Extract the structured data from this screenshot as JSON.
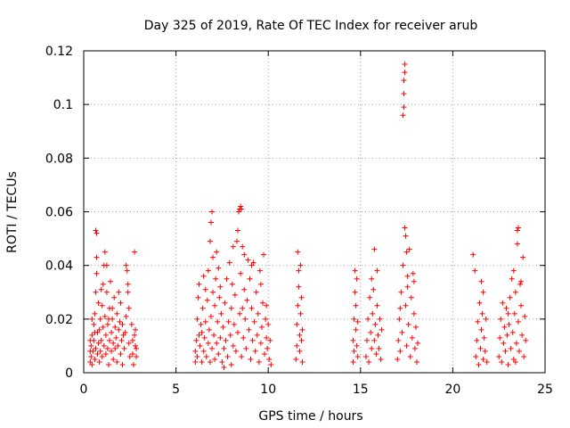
{
  "chart_data": {
    "type": "scatter",
    "title": "Day 325 of 2019, Rate Of TEC Index for receiver arub",
    "xlabel": "GPS time / hours",
    "ylabel": "ROTI / TECUs",
    "xlim": [
      0,
      25
    ],
    "ylim": [
      0,
      0.12
    ],
    "xticks": [
      0,
      5,
      10,
      15,
      20,
      25
    ],
    "xtick_labels": [
      "0",
      "5",
      "10",
      "15",
      "20",
      "25"
    ],
    "yticks": [
      0,
      0.02,
      0.04,
      0.06,
      0.08,
      0.1,
      0.12
    ],
    "ytick_labels": [
      "0",
      "0.02",
      "0.04",
      "0.06",
      "0.08",
      "0.1",
      "0.12"
    ],
    "grid": true,
    "marker": "plus",
    "color": "#ff0000",
    "points": [
      [
        0.35,
        0.004
      ],
      [
        0.35,
        0.008
      ],
      [
        0.35,
        0.012
      ],
      [
        0.4,
        0.006
      ],
      [
        0.4,
        0.01
      ],
      [
        0.45,
        0.014
      ],
      [
        0.45,
        0.003
      ],
      [
        0.5,
        0.008
      ],
      [
        0.55,
        0.012
      ],
      [
        0.55,
        0.018
      ],
      [
        0.6,
        0.022
      ],
      [
        0.6,
        0.005
      ],
      [
        0.65,
        0.009
      ],
      [
        0.65,
        0.03
      ],
      [
        0.65,
        0.053
      ],
      [
        0.7,
        0.052
      ],
      [
        0.7,
        0.043
      ],
      [
        0.7,
        0.037
      ],
      [
        0.75,
        0.015
      ],
      [
        0.75,
        0.007
      ],
      [
        0.8,
        0.026
      ],
      [
        0.8,
        0.011
      ],
      [
        0.85,
        0.004
      ],
      [
        0.85,
        0.016
      ],
      [
        0.9,
        0.02
      ],
      [
        0.9,
        0.008
      ],
      [
        0.95,
        0.012
      ],
      [
        1.0,
        0.025
      ],
      [
        1.0,
        0.006
      ],
      [
        1.05,
        0.033
      ],
      [
        1.05,
        0.017
      ],
      [
        1.1,
        0.01
      ],
      [
        1.1,
        0.04
      ],
      [
        1.15,
        0.045
      ],
      [
        1.15,
        0.021
      ],
      [
        1.2,
        0.007
      ],
      [
        1.2,
        0.014
      ],
      [
        1.25,
        0.03
      ],
      [
        1.25,
        0.04
      ],
      [
        1.3,
        0.009
      ],
      [
        1.3,
        0.018
      ],
      [
        1.35,
        0.003
      ],
      [
        1.4,
        0.012
      ],
      [
        1.4,
        0.024
      ],
      [
        1.45,
        0.034
      ],
      [
        1.5,
        0.008
      ],
      [
        1.5,
        0.015
      ],
      [
        1.55,
        0.02
      ],
      [
        1.6,
        0.005
      ],
      [
        1.6,
        0.011
      ],
      [
        1.65,
        0.028
      ],
      [
        1.7,
        0.017
      ],
      [
        1.7,
        0.009
      ],
      [
        1.75,
        0.013
      ],
      [
        1.8,
        0.022
      ],
      [
        1.8,
        0.004
      ],
      [
        1.85,
        0.01
      ],
      [
        1.9,
        0.016
      ],
      [
        1.95,
        0.019
      ],
      [
        2.0,
        0.007
      ],
      [
        2.0,
        0.026
      ],
      [
        2.05,
        0.012
      ],
      [
        2.1,
        0.018
      ],
      [
        2.1,
        0.003
      ],
      [
        2.2,
        0.009
      ],
      [
        2.25,
        0.015
      ],
      [
        2.3,
        0.021
      ],
      [
        2.3,
        0.04
      ],
      [
        2.35,
        0.038
      ],
      [
        2.4,
        0.033
      ],
      [
        2.4,
        0.03
      ],
      [
        2.45,
        0.024
      ],
      [
        2.45,
        0.011
      ],
      [
        2.5,
        0.006
      ],
      [
        2.6,
        0.018
      ],
      [
        2.65,
        0.012
      ],
      [
        2.65,
        0.007
      ],
      [
        2.7,
        0.003
      ],
      [
        2.75,
        0.014
      ],
      [
        2.75,
        0.045
      ],
      [
        2.8,
        0.01
      ],
      [
        2.8,
        0.016
      ],
      [
        2.85,
        0.006
      ],
      [
        2.85,
        0.009
      ],
      [
        1.55,
        0.024
      ],
      [
        0.45,
        0.02
      ],
      [
        0.95,
        0.031
      ],
      [
        1.35,
        0.02
      ],
      [
        2.15,
        0.014
      ],
      [
        0.6,
        0.015
      ],
      [
        1.9,
        0.03
      ],
      [
        6.05,
        0.004
      ],
      [
        6.05,
        0.008
      ],
      [
        6.1,
        0.012
      ],
      [
        6.15,
        0.02
      ],
      [
        6.15,
        0.006
      ],
      [
        6.2,
        0.028
      ],
      [
        6.25,
        0.014
      ],
      [
        6.25,
        0.033
      ],
      [
        6.3,
        0.01
      ],
      [
        6.35,
        0.018
      ],
      [
        6.4,
        0.004
      ],
      [
        6.45,
        0.024
      ],
      [
        6.5,
        0.008
      ],
      [
        6.5,
        0.036
      ],
      [
        6.55,
        0.013
      ],
      [
        6.6,
        0.019
      ],
      [
        6.65,
        0.006
      ],
      [
        6.7,
        0.027
      ],
      [
        6.75,
        0.011
      ],
      [
        6.75,
        0.038
      ],
      [
        6.8,
        0.016
      ],
      [
        6.85,
        0.049
      ],
      [
        6.85,
        0.004
      ],
      [
        6.9,
        0.021
      ],
      [
        6.9,
        0.056
      ],
      [
        6.95,
        0.06
      ],
      [
        6.95,
        0.009
      ],
      [
        7.0,
        0.03
      ],
      [
        7.0,
        0.043
      ],
      [
        7.05,
        0.014
      ],
      [
        7.1,
        0.025
      ],
      [
        7.1,
        0.005
      ],
      [
        7.15,
        0.035
      ],
      [
        7.2,
        0.011
      ],
      [
        7.2,
        0.045
      ],
      [
        7.25,
        0.019
      ],
      [
        7.3,
        0.039
      ],
      [
        7.3,
        0.007
      ],
      [
        7.35,
        0.028
      ],
      [
        7.4,
        0.013
      ],
      [
        7.45,
        0.022
      ],
      [
        7.5,
        0.004
      ],
      [
        7.55,
        0.017
      ],
      [
        7.6,
        0.009
      ],
      [
        7.65,
        0.026
      ],
      [
        7.7,
        0.012
      ],
      [
        7.75,
        0.035
      ],
      [
        7.8,
        0.006
      ],
      [
        7.85,
        0.019
      ],
      [
        7.9,
        0.041
      ],
      [
        7.95,
        0.014
      ],
      [
        8.0,
        0.024
      ],
      [
        8.0,
        0.003
      ],
      [
        8.05,
        0.033
      ],
      [
        8.1,
        0.01
      ],
      [
        8.15,
        0.018
      ],
      [
        8.2,
        0.029
      ],
      [
        8.25,
        0.008
      ],
      [
        8.3,
        0.049
      ],
      [
        8.35,
        0.053
      ],
      [
        8.35,
        0.015
      ],
      [
        8.4,
        0.06
      ],
      [
        8.45,
        0.061
      ],
      [
        8.45,
        0.022
      ],
      [
        8.5,
        0.062
      ],
      [
        8.5,
        0.037
      ],
      [
        8.55,
        0.061
      ],
      [
        8.55,
        0.006
      ],
      [
        8.6,
        0.047
      ],
      [
        8.65,
        0.013
      ],
      [
        8.7,
        0.031
      ],
      [
        8.7,
        0.044
      ],
      [
        8.75,
        0.02
      ],
      [
        8.8,
        0.009
      ],
      [
        8.85,
        0.027
      ],
      [
        8.9,
        0.042
      ],
      [
        8.95,
        0.016
      ],
      [
        9.0,
        0.035
      ],
      [
        9.05,
        0.005
      ],
      [
        9.1,
        0.024
      ],
      [
        9.15,
        0.012
      ],
      [
        9.2,
        0.041
      ],
      [
        9.25,
        0.019
      ],
      [
        9.3,
        0.008
      ],
      [
        9.35,
        0.03
      ],
      [
        9.4,
        0.014
      ],
      [
        9.45,
        0.022
      ],
      [
        9.5,
        0.004
      ],
      [
        9.55,
        0.038
      ],
      [
        9.6,
        0.011
      ],
      [
        9.65,
        0.017
      ],
      [
        9.7,
        0.026
      ],
      [
        9.75,
        0.044
      ],
      [
        9.8,
        0.007
      ],
      [
        9.85,
        0.02
      ],
      [
        9.9,
        0.013
      ],
      [
        9.95,
        0.009
      ],
      [
        10.0,
        0.018
      ],
      [
        10.05,
        0.005
      ],
      [
        10.1,
        0.012
      ],
      [
        10.15,
        0.003
      ],
      [
        6.4,
        0.015
      ],
      [
        6.6,
        0.031
      ],
      [
        7.4,
        0.032
      ],
      [
        7.6,
        0.002
      ],
      [
        8.1,
        0.047
      ],
      [
        8.6,
        0.024
      ],
      [
        9.1,
        0.04
      ],
      [
        9.6,
        0.033
      ],
      [
        9.9,
        0.025
      ],
      [
        11.5,
        0.005
      ],
      [
        11.55,
        0.01
      ],
      [
        11.55,
        0.018
      ],
      [
        11.6,
        0.025
      ],
      [
        11.6,
        0.045
      ],
      [
        11.65,
        0.038
      ],
      [
        11.65,
        0.032
      ],
      [
        11.7,
        0.014
      ],
      [
        11.7,
        0.008
      ],
      [
        11.75,
        0.022
      ],
      [
        11.75,
        0.04
      ],
      [
        11.8,
        0.028
      ],
      [
        11.8,
        0.012
      ],
      [
        11.85,
        0.004
      ],
      [
        11.85,
        0.016
      ],
      [
        14.6,
        0.004
      ],
      [
        14.6,
        0.012
      ],
      [
        14.65,
        0.02
      ],
      [
        14.65,
        0.008
      ],
      [
        14.7,
        0.038
      ],
      [
        14.7,
        0.03
      ],
      [
        14.75,
        0.016
      ],
      [
        14.75,
        0.025
      ],
      [
        14.8,
        0.01
      ],
      [
        14.8,
        0.035
      ],
      [
        14.85,
        0.006
      ],
      [
        14.85,
        0.019
      ],
      [
        15.3,
        0.006
      ],
      [
        15.35,
        0.012
      ],
      [
        15.4,
        0.02
      ],
      [
        15.45,
        0.004
      ],
      [
        15.5,
        0.028
      ],
      [
        15.55,
        0.015
      ],
      [
        15.6,
        0.009
      ],
      [
        15.65,
        0.022
      ],
      [
        15.7,
        0.031
      ],
      [
        15.75,
        0.012
      ],
      [
        15.75,
        0.046
      ],
      [
        15.8,
        0.018
      ],
      [
        15.85,
        0.007
      ],
      [
        15.9,
        0.025
      ],
      [
        15.95,
        0.014
      ],
      [
        16.0,
        0.009
      ],
      [
        16.05,
        0.02
      ],
      [
        16.1,
        0.005
      ],
      [
        16.15,
        0.016
      ],
      [
        15.6,
        0.035
      ],
      [
        15.9,
        0.038
      ],
      [
        17.0,
        0.005
      ],
      [
        17.05,
        0.012
      ],
      [
        17.1,
        0.02
      ],
      [
        17.15,
        0.008
      ],
      [
        17.2,
        0.03
      ],
      [
        17.25,
        0.015
      ],
      [
        17.3,
        0.04
      ],
      [
        17.3,
        0.096
      ],
      [
        17.35,
        0.099
      ],
      [
        17.35,
        0.104
      ],
      [
        17.35,
        0.109
      ],
      [
        17.4,
        0.112
      ],
      [
        17.4,
        0.115
      ],
      [
        17.4,
        0.054
      ],
      [
        17.45,
        0.051
      ],
      [
        17.45,
        0.025
      ],
      [
        17.5,
        0.045
      ],
      [
        17.5,
        0.01
      ],
      [
        17.55,
        0.036
      ],
      [
        17.6,
        0.018
      ],
      [
        17.65,
        0.046
      ],
      [
        17.7,
        0.006
      ],
      [
        17.75,
        0.028
      ],
      [
        17.8,
        0.013
      ],
      [
        17.85,
        0.037
      ],
      [
        17.9,
        0.022
      ],
      [
        17.95,
        0.009
      ],
      [
        18.0,
        0.017
      ],
      [
        18.05,
        0.004
      ],
      [
        18.1,
        0.011
      ],
      [
        17.15,
        0.024
      ],
      [
        17.55,
        0.032
      ],
      [
        17.9,
        0.034
      ],
      [
        21.1,
        0.044
      ],
      [
        21.2,
        0.038
      ],
      [
        21.25,
        0.006
      ],
      [
        21.3,
        0.012
      ],
      [
        21.35,
        0.019
      ],
      [
        21.4,
        0.003
      ],
      [
        21.45,
        0.026
      ],
      [
        21.5,
        0.009
      ],
      [
        21.55,
        0.016
      ],
      [
        21.55,
        0.034
      ],
      [
        21.6,
        0.022
      ],
      [
        21.65,
        0.03
      ],
      [
        21.65,
        0.005
      ],
      [
        21.7,
        0.013
      ],
      [
        21.75,
        0.008
      ],
      [
        21.8,
        0.02
      ],
      [
        21.85,
        0.004
      ],
      [
        22.5,
        0.006
      ],
      [
        22.55,
        0.013
      ],
      [
        22.6,
        0.02
      ],
      [
        22.65,
        0.004
      ],
      [
        22.7,
        0.026
      ],
      [
        22.75,
        0.011
      ],
      [
        22.8,
        0.017
      ],
      [
        22.85,
        0.008
      ],
      [
        22.9,
        0.024
      ],
      [
        22.95,
        0.014
      ],
      [
        23.0,
        0.003
      ],
      [
        23.05,
        0.018
      ],
      [
        23.1,
        0.028
      ],
      [
        23.15,
        0.009
      ],
      [
        23.2,
        0.035
      ],
      [
        23.25,
        0.015
      ],
      [
        23.3,
        0.038
      ],
      [
        23.3,
        0.005
      ],
      [
        23.35,
        0.022
      ],
      [
        23.4,
        0.03
      ],
      [
        23.45,
        0.011
      ],
      [
        23.5,
        0.053
      ],
      [
        23.5,
        0.048
      ],
      [
        23.55,
        0.054
      ],
      [
        23.55,
        0.019
      ],
      [
        23.6,
        0.008
      ],
      [
        23.65,
        0.033
      ],
      [
        23.7,
        0.025
      ],
      [
        23.75,
        0.014
      ],
      [
        23.8,
        0.043
      ],
      [
        23.85,
        0.006
      ],
      [
        23.9,
        0.021
      ],
      [
        23.95,
        0.012
      ],
      [
        23.0,
        0.022
      ],
      [
        23.4,
        0.004
      ],
      [
        23.7,
        0.034
      ]
    ]
  }
}
